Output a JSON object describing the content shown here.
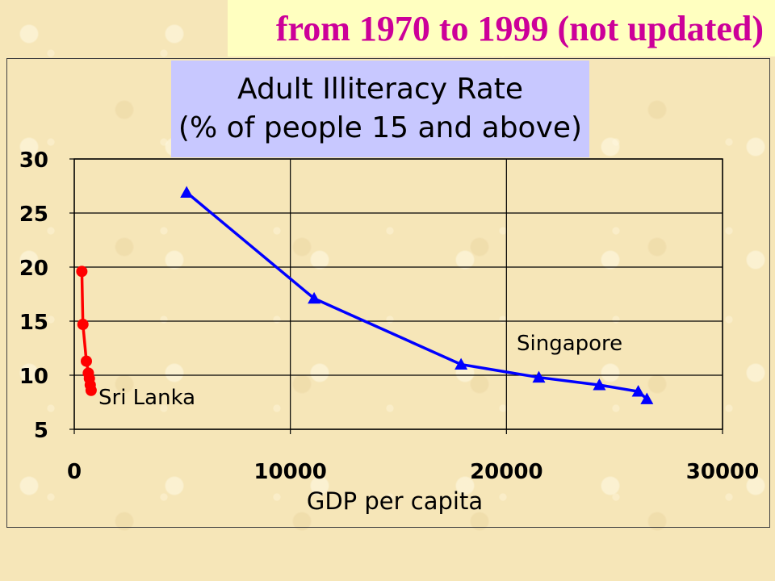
{
  "banner": {
    "text": "from 1970 to 1999 (not updated)"
  },
  "chart_data": {
    "type": "line",
    "title": "Adult Illiteracy Rate",
    "subtitle": "(% of people 15 and above)",
    "xlabel": "GDP per capita",
    "ylabel": "",
    "xlim": [
      0,
      30000
    ],
    "ylim": [
      5,
      30
    ],
    "x_ticks": [
      0,
      10000,
      20000,
      30000
    ],
    "y_ticks": [
      5,
      10,
      15,
      20,
      25,
      30
    ],
    "grid": "horizontal and vertical",
    "series": [
      {
        "name": "Sri Lanka",
        "color": "#ff0000",
        "marker": "circle",
        "points": [
          {
            "x": 350,
            "y": 19.6
          },
          {
            "x": 400,
            "y": 14.7
          },
          {
            "x": 560,
            "y": 11.3
          },
          {
            "x": 650,
            "y": 10.2
          },
          {
            "x": 700,
            "y": 9.7
          },
          {
            "x": 740,
            "y": 9.1
          },
          {
            "x": 780,
            "y": 8.6
          }
        ]
      },
      {
        "name": "Singapore",
        "color": "#0000ff",
        "marker": "triangle",
        "points": [
          {
            "x": 5200,
            "y": 26.9
          },
          {
            "x": 11100,
            "y": 17.1
          },
          {
            "x": 17900,
            "y": 11.0
          },
          {
            "x": 21500,
            "y": 9.8
          },
          {
            "x": 24300,
            "y": 9.1
          },
          {
            "x": 26100,
            "y": 8.5
          },
          {
            "x": 26500,
            "y": 7.8
          }
        ]
      }
    ]
  }
}
